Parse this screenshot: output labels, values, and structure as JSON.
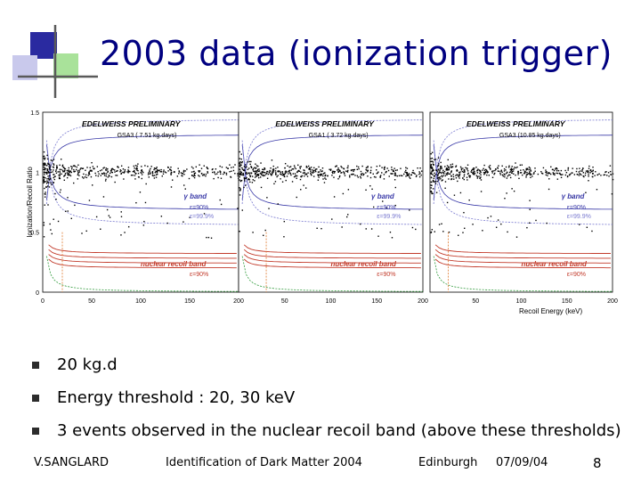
{
  "slide": {
    "title": "2003 data (ionization trigger)",
    "bullets": [
      "20 kg.d",
      "Energy threshold : 20, 30 keV",
      "3 events observed in the nuclear recoil band (above these thresholds)"
    ]
  },
  "footer": {
    "author": "V.SANGLARD",
    "conference": "Identification of Dark Matter 2004",
    "place": "Edinburgh",
    "date": "07/09/04",
    "page": "8"
  },
  "figure": {
    "ylabel": "Ionization/Recoil Ratio",
    "xlabel": "Recoil Energy (keV)",
    "yticks": [
      "1.5",
      "1",
      "0.5",
      "0"
    ],
    "xticks_first": [
      "0",
      "50",
      "100",
      "150",
      "200"
    ],
    "xticks_other": [
      "50",
      "100",
      "150",
      "200"
    ],
    "panels": [
      {
        "header": "EDELWEISS PRELIMINARY",
        "detector": "GSA3 ( 7.51 kg.days)",
        "band_gamma": "γ band",
        "eps90": "ε=90%",
        "eps999": "ε=99.9%",
        "nuclear": "nuclear recoil band",
        "nuc_eps": "ε=90%"
      },
      {
        "header": "EDELWEISS PRELIMINARY",
        "detector": "GSA1 ( 3.72 kg.days)",
        "band_gamma": "γ band",
        "eps90": "ε=90%",
        "eps999": "ε=99.9%",
        "nuclear": "nuclear recoil band",
        "nuc_eps": "ε=90%"
      },
      {
        "header": "EDELWEISS PRELIMINARY",
        "detector": "GSA3 (10.85 kg.days)",
        "band_gamma": "γ band",
        "eps90": "ε=90%",
        "eps999": "ε=99.9%",
        "nuclear": "nuclear recoil band",
        "nuc_eps": "ε=90%"
      }
    ],
    "colors": {
      "gamma_band": "#3a3aa8",
      "gamma_limit": "#7a7ad0",
      "nuclear_band": "#c23a2a",
      "threshold": "#e07a30",
      "green_limit": "#2f9a3a",
      "events": "#000000",
      "title": "#000080"
    }
  }
}
